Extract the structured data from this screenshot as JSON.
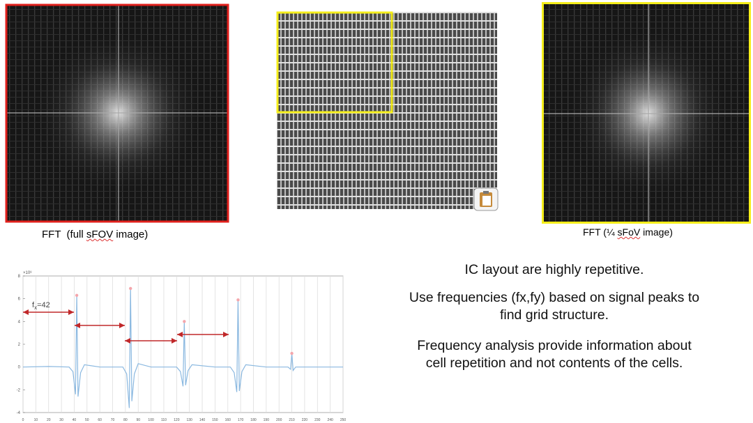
{
  "images": {
    "left_caption": [
      "FFT  (full ",
      "sFOV",
      " image)"
    ],
    "right_caption": [
      "FFT (¼ ",
      "sFoV",
      " image)"
    ]
  },
  "text": {
    "paragraphs": [
      [
        "IC layout are highly repetitive."
      ],
      [
        "Use frequencies (fx,fy) based on signal peaks to",
        "find grid structure."
      ],
      [
        "Frequency analysis provide information about",
        "cell repetition and not contents of the cells."
      ]
    ]
  },
  "chart_data": {
    "type": "line",
    "y_multiplier": "×10⁸",
    "annotation": {
      "base": "f",
      "sub": "x",
      "rest": "=42"
    },
    "xlim": [
      0,
      250
    ],
    "ylim": [
      -4,
      8
    ],
    "xticks": [
      0,
      10,
      20,
      30,
      40,
      50,
      60,
      70,
      80,
      90,
      100,
      110,
      120,
      130,
      140,
      150,
      160,
      170,
      180,
      190,
      200,
      210,
      220,
      230,
      240,
      250
    ],
    "yticks": [
      -4,
      -2,
      0,
      2,
      4,
      6,
      8
    ],
    "grid": true,
    "series": [
      {
        "color": "#8ab8e0",
        "x": [
          0,
          20,
          36,
          39,
          41,
          42,
          43,
          45,
          48,
          60,
          78,
          81,
          83,
          84,
          85,
          87,
          90,
          100,
          120,
          123,
          125,
          126,
          127,
          129,
          132,
          150,
          162,
          165,
          167,
          168,
          169,
          171,
          174,
          190,
          207,
          209,
          210,
          211,
          213,
          230,
          250
        ],
        "values": [
          0,
          0.05,
          0,
          -0.4,
          -2.4,
          6.3,
          -2.6,
          -0.5,
          0.2,
          0,
          0,
          -0.6,
          -3.6,
          6.9,
          -3,
          -0.6,
          0.3,
          0,
          0,
          -0.4,
          -1.7,
          4,
          -1.6,
          -0.3,
          0.2,
          0,
          0,
          -0.5,
          -2.2,
          5.9,
          -2.1,
          -0.4,
          0.2,
          0,
          0,
          -0.2,
          1.2,
          -0.3,
          0,
          0,
          0
        ]
      },
      {
        "color": "#f4a6ac",
        "x": [
          42,
          84,
          126,
          168,
          210
        ],
        "values": [
          6.3,
          6.9,
          4,
          5.9,
          1.2
        ]
      }
    ]
  }
}
